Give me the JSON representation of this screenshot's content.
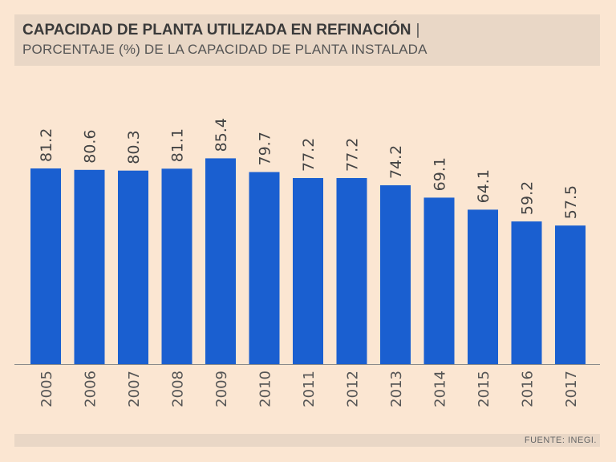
{
  "header": {
    "title": "CAPACIDAD DE PLANTA UTILIZADA EN REFINACIÓN",
    "separator": "|",
    "subtitle": "PORCENTAJE (%) DE LA CAPACIDAD DE PLANTA INSTALADA"
  },
  "source": "FUENTE: INEGI.",
  "colors": {
    "bar": "#1a5fd0",
    "background": "#fbe6d2",
    "panel": "#e9d7c6",
    "text": "#444444"
  },
  "chart_data": {
    "type": "bar",
    "categories": [
      "2005",
      "2006",
      "2007",
      "2008",
      "2009",
      "2010",
      "2011",
      "2012",
      "2013",
      "2014",
      "2015",
      "2016",
      "2017"
    ],
    "values": [
      81.2,
      80.6,
      80.3,
      81.1,
      85.4,
      79.7,
      77.2,
      77.2,
      74.2,
      69.1,
      64.1,
      59.2,
      57.5
    ],
    "value_labels": [
      "81.2",
      "80.6",
      "80.3",
      "81.1",
      "85.4",
      "79.7",
      "77.2",
      "77.2",
      "74.2",
      "69.1",
      "64.1",
      "59.2",
      "57.5"
    ],
    "title": "CAPACIDAD DE PLANTA UTILIZADA EN REFINACIÓN",
    "subtitle": "PORCENTAJE (%) DE LA CAPACIDAD DE PLANTA INSTALADA",
    "xlabel": "",
    "ylabel": "",
    "grid": false,
    "legend": "none"
  }
}
